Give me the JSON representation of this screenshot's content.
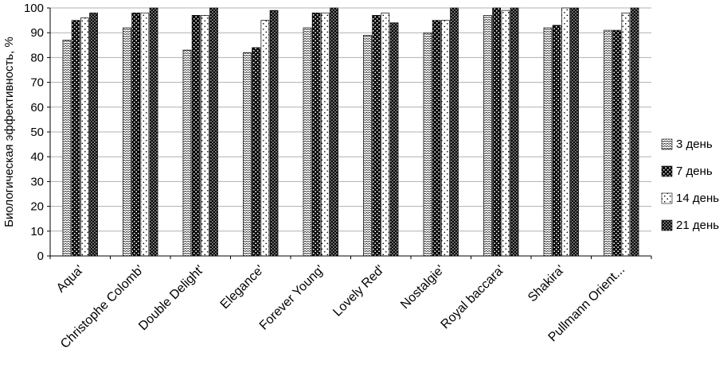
{
  "figure": {
    "title": "",
    "background": "#ffffff",
    "axis_color": "#000000",
    "grid_color": "#b0b0b0"
  },
  "chart_data": {
    "type": "bar",
    "title": "",
    "xlabel": "",
    "ylabel": "Биологическая эффективность, %",
    "ylim": [
      0,
      100
    ],
    "ytick_step": 10,
    "ytick_labels": [
      "0",
      "10",
      "20",
      "30",
      "40",
      "50",
      "60",
      "70",
      "80",
      "90",
      "100"
    ],
    "grid": true,
    "legend_position": "right",
    "categories": [
      "Aqua'",
      "Christophe Colomb'",
      "Double Delight'",
      "Elegance'",
      "Forever Young'",
      "Lovely Red'",
      "Nostalgie'",
      "Royal baccara'",
      "Shakira'",
      "Pullmann Orient..."
    ],
    "series": [
      {
        "name": "3 день",
        "pattern": "zigzag-waves",
        "values": [
          87,
          92,
          83,
          82,
          92,
          89,
          90,
          97,
          92,
          91
        ]
      },
      {
        "name": "7 день",
        "pattern": "dark-trellis",
        "values": [
          95,
          98,
          97,
          84,
          98,
          97,
          95,
          100,
          93,
          91
        ]
      },
      {
        "name": "14 день",
        "pattern": "sparse-dots",
        "values": [
          96,
          98,
          97,
          95,
          98,
          98,
          95,
          99,
          100,
          98
        ]
      },
      {
        "name": "21 день",
        "pattern": "dense-checker",
        "values": [
          98,
          100,
          100,
          99,
          100,
          94,
          100,
          100,
          100,
          100
        ]
      }
    ]
  }
}
